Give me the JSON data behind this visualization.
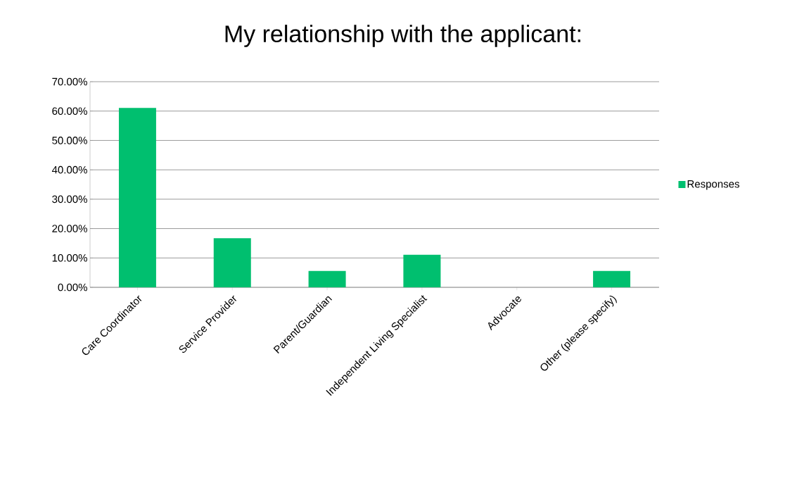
{
  "chart_data": {
    "type": "bar",
    "title": "My relationship with the applicant:",
    "categories": [
      "Care Coordinator",
      "Service Provider",
      "Parent/Guardian",
      "Independent Living Specialist",
      "Advocate",
      "Other (please specify)"
    ],
    "series": [
      {
        "name": "Responses",
        "color": "#00bf6f",
        "values": [
          61.1,
          16.7,
          5.6,
          11.1,
          0,
          5.6
        ]
      }
    ],
    "ylim": [
      0,
      70
    ],
    "yticks": [
      {
        "value": 0,
        "label": "0.00%"
      },
      {
        "value": 10,
        "label": "10.00%"
      },
      {
        "value": 20,
        "label": "20.00%"
      },
      {
        "value": 30,
        "label": "30.00%"
      },
      {
        "value": 40,
        "label": "40.00%"
      },
      {
        "value": 50,
        "label": "50.00%"
      },
      {
        "value": 60,
        "label": "60.00%"
      },
      {
        "value": 70,
        "label": "70.00%"
      }
    ],
    "grid": "y",
    "legend": "right"
  }
}
